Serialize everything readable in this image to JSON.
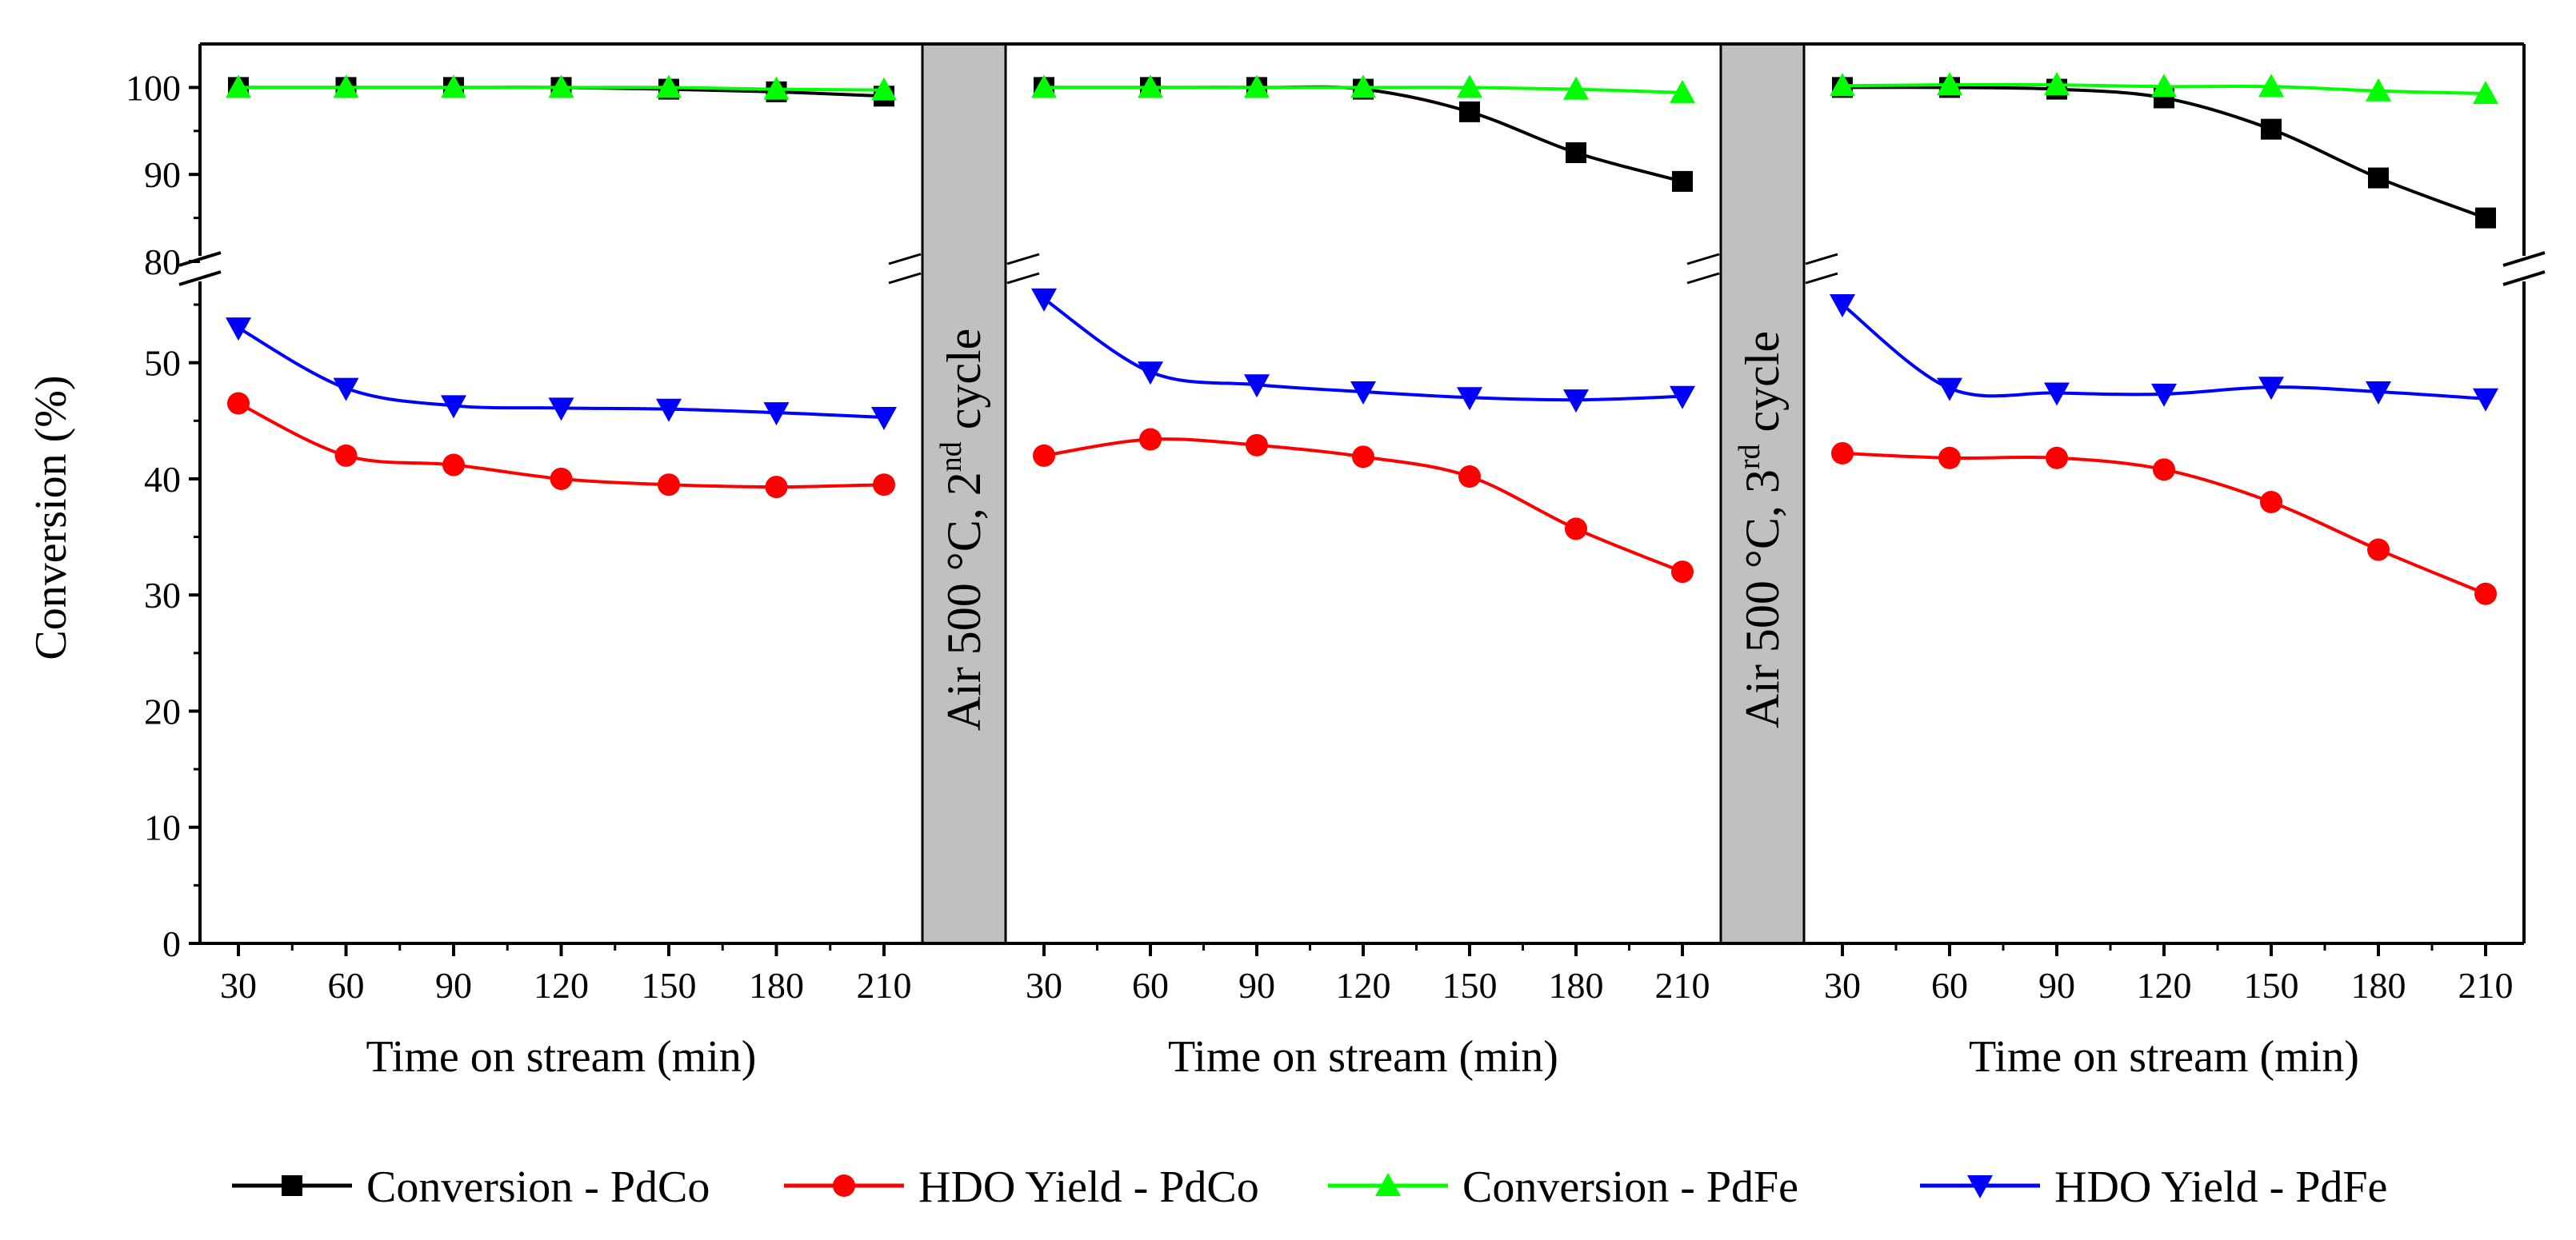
{
  "chart_data": {
    "type": "line",
    "ylabel": "Conversion (%)",
    "ylim_lower": [
      0,
      57
    ],
    "ylim_upper": [
      80,
      105
    ],
    "y_break": [
      57,
      80
    ],
    "yticks": [
      0,
      10,
      20,
      30,
      40,
      50,
      80,
      90,
      100
    ],
    "ytick_labels": [
      "0",
      "10",
      "20",
      "30",
      "40",
      "50",
      "80",
      "90",
      "100"
    ],
    "x": [
      30,
      60,
      90,
      120,
      150,
      180,
      210
    ],
    "xtick_labels": [
      "30",
      "60",
      "90",
      "120",
      "150",
      "180",
      "210"
    ],
    "panels": [
      {
        "xlabel": "Time on stream (min)",
        "series": [
          {
            "name": "Conversion - PdCo",
            "values": [
              100,
              100,
              100,
              100,
              99.8,
              99.5,
              99.0
            ]
          },
          {
            "name": "HDO Yield - PdCo",
            "values": [
              46.5,
              42.0,
              41.2,
              40.0,
              39.5,
              39.3,
              39.5
            ]
          },
          {
            "name": "Conversion - PdFe",
            "values": [
              100,
              100,
              100,
              100,
              100,
              99.8,
              99.7
            ]
          },
          {
            "name": "HDO Yield - PdFe",
            "values": [
              53.0,
              47.8,
              46.3,
              46.1,
              46.0,
              45.7,
              45.3
            ]
          }
        ]
      },
      {
        "xlabel": "Time on stream (min)",
        "series": [
          {
            "name": "Conversion - PdCo",
            "values": [
              100,
              100,
              100,
              99.8,
              97.2,
              92.5,
              89.2
            ]
          },
          {
            "name": "HDO Yield - PdCo",
            "values": [
              42.0,
              43.4,
              42.9,
              41.9,
              40.2,
              35.7,
              32.0
            ]
          },
          {
            "name": "Conversion - PdFe",
            "values": [
              100,
              100,
              100,
              100,
              100,
              99.8,
              99.4
            ]
          },
          {
            "name": "HDO Yield - PdFe",
            "values": [
              55.5,
              49.2,
              48.1,
              47.5,
              47.0,
              46.8,
              47.1
            ]
          }
        ]
      },
      {
        "xlabel": "Time on stream (min)",
        "series": [
          {
            "name": "Conversion - PdCo",
            "values": [
              100,
              100,
              99.8,
              98.8,
              95.2,
              89.6,
              85.0
            ]
          },
          {
            "name": "HDO Yield - PdCo",
            "values": [
              42.2,
              41.8,
              41.8,
              40.8,
              38.0,
              33.9,
              30.1
            ]
          },
          {
            "name": "Conversion - PdFe",
            "values": [
              100.2,
              100.3,
              100.3,
              100.1,
              100.1,
              99.6,
              99.3
            ]
          },
          {
            "name": "HDO Yield - PdFe",
            "values": [
              55.0,
              47.8,
              47.4,
              47.3,
              47.9,
              47.5,
              46.9
            ]
          }
        ]
      }
    ],
    "regeneration_labels": [
      {
        "main": "Air 500 °C, 2",
        "sup": "nd",
        "tail": " cycle"
      },
      {
        "main": "Air 500 °C, 3",
        "sup": "rd",
        "tail": " cycle"
      }
    ],
    "legend": {
      "placement": "bottom",
      "entries": [
        {
          "label": "Conversion - PdCo",
          "marker": "square",
          "color": "#000000"
        },
        {
          "label": "HDO Yield - PdCo",
          "marker": "circle",
          "color": "#ff0000"
        },
        {
          "label": "Conversion - PdFe",
          "marker": "triangle-up",
          "color": "#00ff00"
        },
        {
          "label": "HDO Yield - PdFe",
          "marker": "triangle-down",
          "color": "#0000ff"
        }
      ]
    },
    "colors": {
      "pdco_conversion": "#000000",
      "pdco_hdo": "#ff0000",
      "pdfe_conversion": "#00ff00",
      "pdfe_hdo": "#0000ff",
      "regen_band": "#c0c0c0"
    }
  }
}
